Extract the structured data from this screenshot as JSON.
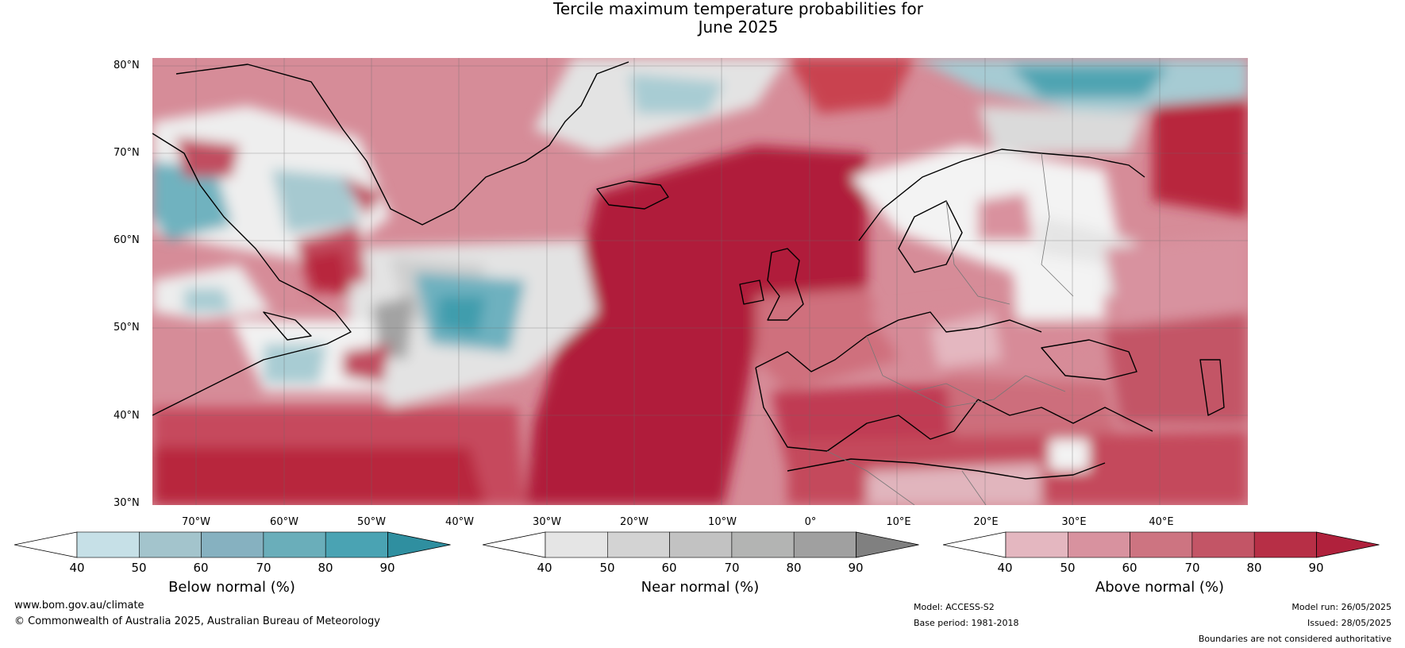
{
  "title_line1": "Tercile maximum temperature probabilities for",
  "title_line2": "June 2025",
  "lat_labels": [
    "80°N",
    "70°N",
    "60°N",
    "50°N",
    "40°N",
    "30°N"
  ],
  "lon_labels": [
    "70°W",
    "60°W",
    "50°W",
    "40°W",
    "30°W",
    "20°W",
    "10°W",
    "0°",
    "10°E",
    "20°E",
    "30°E",
    "40°E"
  ],
  "colorbars": [
    {
      "title": "Below normal (%)",
      "ticks": [
        "40",
        "50",
        "60",
        "70",
        "80",
        "90"
      ],
      "colors": [
        "#ffffff",
        "#c6e0e7",
        "#a3c4cc",
        "#86b1c0",
        "#6aaeba",
        "#4aa3b3",
        "#2f8fa0"
      ]
    },
    {
      "title": "Near normal (%)",
      "ticks": [
        "40",
        "50",
        "60",
        "70",
        "80",
        "90"
      ],
      "colors": [
        "#ffffff",
        "#e5e5e5",
        "#d3d3d3",
        "#c2c2c2",
        "#b3b4b3",
        "#a0a0a0",
        "#808080"
      ]
    },
    {
      "title": "Above normal (%)",
      "ticks": [
        "40",
        "50",
        "60",
        "70",
        "80",
        "90"
      ],
      "colors": [
        "#ffffff",
        "#e4b7c0",
        "#d8929f",
        "#cd7481",
        "#c35566",
        "#b72f46",
        "#b0213c"
      ]
    }
  ],
  "footer": {
    "website": "www.bom.gov.au/climate",
    "copyright": "© Commonwealth of Australia 2025, Australian Bureau of Meteorology",
    "model": "Model: ACCESS-S2",
    "base_period": "Base period: 1981-2018",
    "model_run": "Model run: 26/05/2025",
    "issued": "Issued: 28/05/2025",
    "disclaimer": "Boundaries are not considered authoritative"
  }
}
